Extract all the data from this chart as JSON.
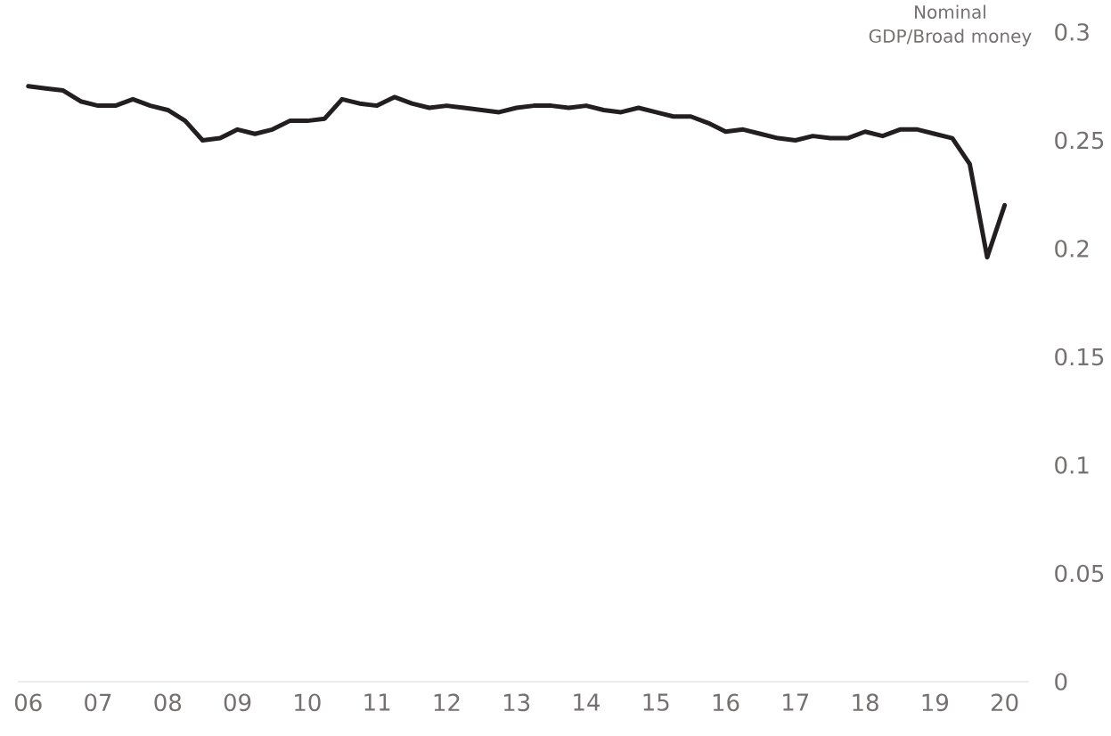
{
  "chart_data": {
    "type": "line",
    "ylabel": "Nominal GDP/Broad money",
    "x": [
      2006,
      2006.25,
      2006.5,
      2006.75,
      2007,
      2007.25,
      2007.5,
      2007.75,
      2008,
      2008.25,
      2008.5,
      2008.75,
      2009,
      2009.25,
      2009.5,
      2009.75,
      2010,
      2010.25,
      2010.5,
      2010.75,
      2011,
      2011.25,
      2011.5,
      2011.75,
      2012,
      2012.25,
      2012.5,
      2012.75,
      2013,
      2013.25,
      2013.5,
      2013.75,
      2014,
      2014.25,
      2014.5,
      2014.75,
      2015,
      2015.25,
      2015.5,
      2015.75,
      2016,
      2016.25,
      2016.5,
      2016.75,
      2017,
      2017.25,
      2017.5,
      2017.75,
      2018,
      2018.25,
      2018.5,
      2018.75,
      2019,
      2019.25,
      2019.5,
      2019.75,
      2020
    ],
    "values": [
      0.275,
      0.274,
      0.273,
      0.268,
      0.266,
      0.266,
      0.269,
      0.266,
      0.264,
      0.259,
      0.25,
      0.251,
      0.255,
      0.253,
      0.255,
      0.259,
      0.259,
      0.26,
      0.269,
      0.267,
      0.266,
      0.27,
      0.267,
      0.265,
      0.266,
      0.265,
      0.264,
      0.263,
      0.265,
      0.266,
      0.266,
      0.265,
      0.266,
      0.264,
      0.263,
      0.265,
      0.263,
      0.261,
      0.261,
      0.258,
      0.254,
      0.255,
      0.253,
      0.251,
      0.25,
      0.252,
      0.251,
      0.251,
      0.254,
      0.252,
      0.255,
      0.255,
      0.253,
      0.251,
      0.239,
      0.196,
      0.22
    ],
    "color": "#231f20",
    "xlim": [
      2005.85,
      2020.35
    ],
    "xticks": [
      {
        "value": 2006,
        "label": "06"
      },
      {
        "value": 2007,
        "label": "07"
      },
      {
        "value": 2008,
        "label": "08"
      },
      {
        "value": 2009,
        "label": "09"
      },
      {
        "value": 2010,
        "label": "10"
      },
      {
        "value": 2011,
        "label": "11"
      },
      {
        "value": 2012,
        "label": "12"
      },
      {
        "value": 2013,
        "label": "13"
      },
      {
        "value": 2014,
        "label": "14"
      },
      {
        "value": 2015,
        "label": "15"
      },
      {
        "value": 2016,
        "label": "16"
      },
      {
        "value": 2017,
        "label": "17"
      },
      {
        "value": 2018,
        "label": "18"
      },
      {
        "value": 2019,
        "label": "19"
      },
      {
        "value": 2020,
        "label": "20"
      }
    ],
    "ylim": [
      0,
      0.3
    ],
    "yticks": [
      0,
      0.05,
      0.1,
      0.15,
      0.2,
      0.25,
      0.3
    ]
  }
}
